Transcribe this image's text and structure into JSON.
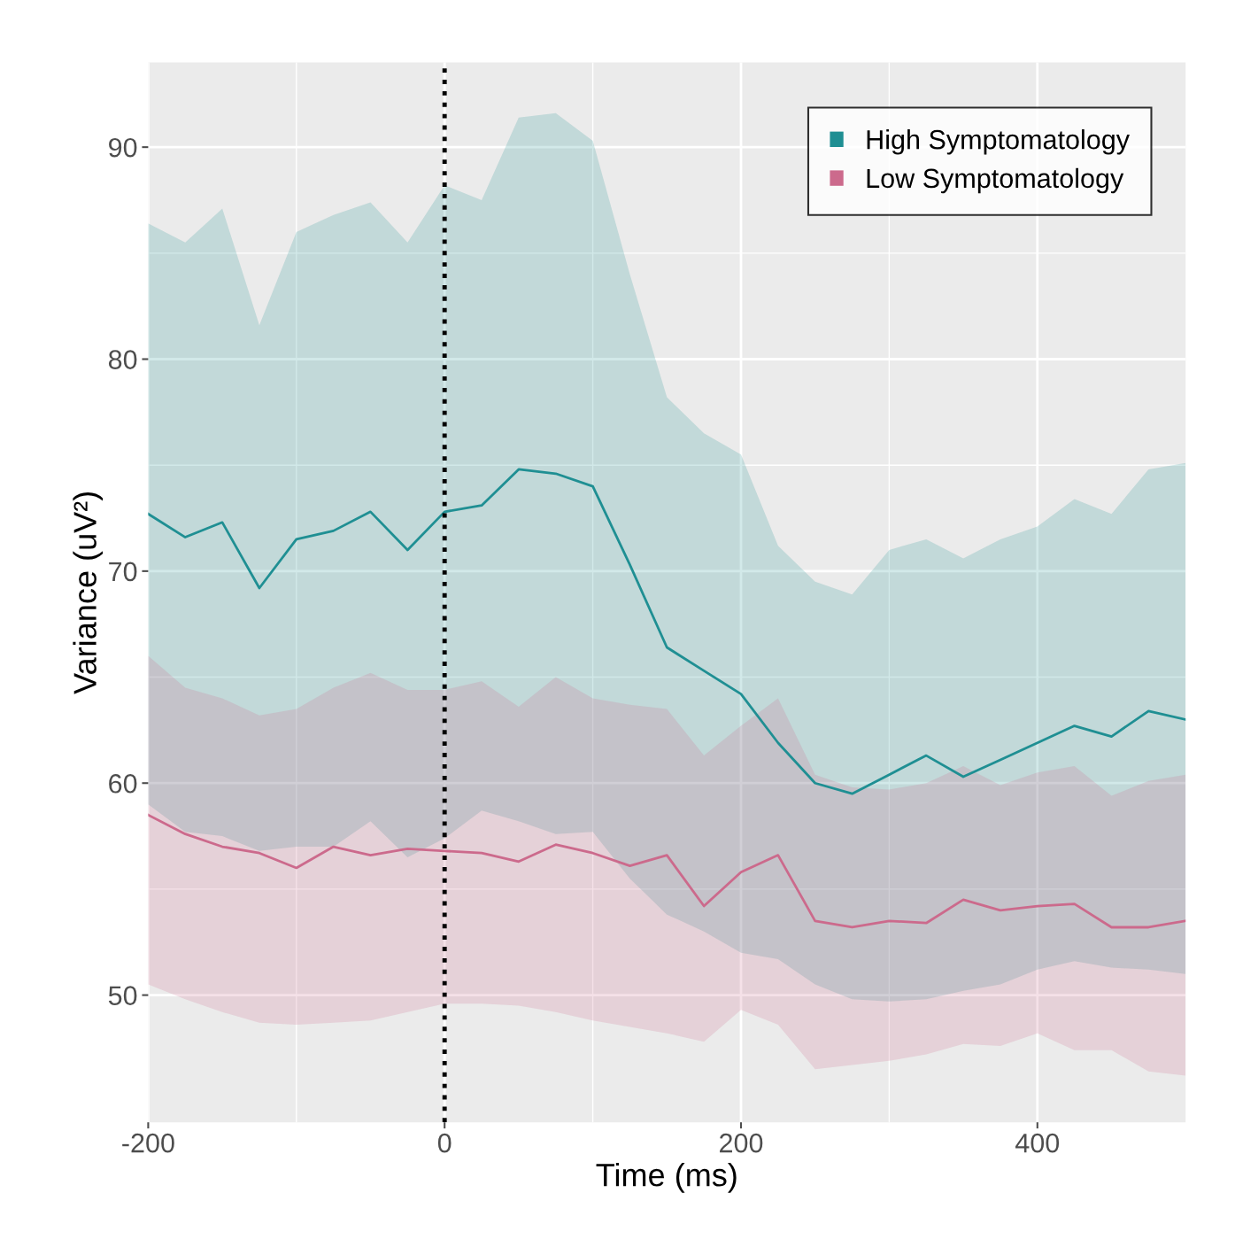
{
  "chart_data": {
    "type": "line",
    "xlabel": "Time (ms)",
    "ylabel": "Variance (uV²)",
    "x": [
      -200,
      -175,
      -150,
      -125,
      -100,
      -75,
      -50,
      -25,
      0,
      25,
      50,
      75,
      100,
      125,
      150,
      175,
      200,
      225,
      250,
      275,
      300,
      325,
      350,
      375,
      400,
      425,
      450,
      475,
      500
    ],
    "series": [
      {
        "name": "High Symptomatology",
        "color": "#1f8f93",
        "values": [
          72.7,
          71.6,
          72.3,
          69.2,
          71.5,
          71.9,
          72.8,
          71.0,
          72.8,
          73.1,
          74.8,
          74.6,
          74.0,
          70.3,
          66.4,
          65.3,
          64.2,
          61.9,
          60.0,
          59.5,
          60.4,
          61.3,
          60.3,
          61.1,
          61.9,
          62.7,
          62.2,
          63.4,
          63.0
        ],
        "upper": [
          86.4,
          85.5,
          87.1,
          81.6,
          86.0,
          86.8,
          87.4,
          85.5,
          88.2,
          87.5,
          91.4,
          91.6,
          90.3,
          84.0,
          78.2,
          76.5,
          75.5,
          71.2,
          69.5,
          68.9,
          71.0,
          71.5,
          70.6,
          71.5,
          72.1,
          73.4,
          72.7,
          74.8,
          75.1
        ],
        "lower": [
          59.0,
          57.7,
          57.5,
          56.8,
          57.0,
          57.0,
          58.2,
          56.5,
          57.4,
          58.7,
          58.2,
          57.6,
          57.7,
          55.5,
          53.8,
          53.0,
          52.0,
          51.7,
          50.5,
          49.8,
          49.7,
          49.8,
          50.2,
          50.5,
          51.2,
          51.6,
          51.3,
          51.2,
          51.0
        ]
      },
      {
        "name": "Low Symptomatology",
        "color": "#cc6a8c",
        "values": [
          58.5,
          57.6,
          57.0,
          56.7,
          56.0,
          57.0,
          56.6,
          56.9,
          56.8,
          56.7,
          56.3,
          57.1,
          56.7,
          56.1,
          56.6,
          54.2,
          55.8,
          56.6,
          53.5,
          53.2,
          53.5,
          53.4,
          54.5,
          54.0,
          54.2,
          54.3,
          53.2,
          53.2,
          53.5
        ],
        "upper": [
          66.0,
          64.5,
          64.0,
          63.2,
          63.5,
          64.5,
          65.2,
          64.4,
          64.4,
          64.8,
          63.6,
          65.0,
          64.0,
          63.7,
          63.5,
          61.3,
          62.7,
          64.0,
          60.4,
          59.8,
          59.7,
          60.0,
          60.8,
          59.9,
          60.5,
          60.8,
          59.4,
          60.1,
          60.4
        ],
        "lower": [
          50.5,
          49.8,
          49.2,
          48.7,
          48.6,
          48.7,
          48.8,
          49.2,
          49.6,
          49.6,
          49.5,
          49.2,
          48.8,
          48.5,
          48.2,
          47.8,
          49.3,
          48.6,
          46.5,
          46.7,
          46.9,
          47.2,
          47.7,
          47.6,
          48.2,
          47.4,
          47.4,
          46.4,
          46.2
        ]
      }
    ],
    "xlim": [
      -200,
      500
    ],
    "ylim": [
      44,
      94
    ],
    "xticks": [
      -200,
      0,
      200,
      400
    ],
    "yticks": [
      50,
      60,
      70,
      80,
      90
    ],
    "ref_lines": [
      {
        "axis": "x",
        "value": 0,
        "color": "#000000",
        "line_style": "dotted"
      }
    ],
    "grid": true,
    "legend": "top right",
    "marker": "none",
    "line_style": "solid"
  }
}
